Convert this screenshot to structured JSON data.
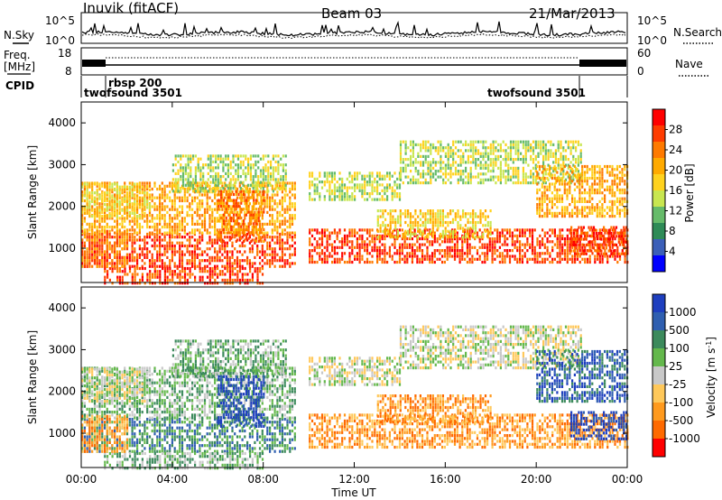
{
  "header": {
    "station": "Inuvik (fitACF)",
    "beam": "Beam 03",
    "date": "21/Mar/2013"
  },
  "labels": {
    "nsky": "N.Sky",
    "nsearch": "N.Search",
    "freq_line1": "Freq.",
    "freq_line2": "[MHz]",
    "nave": "Nave",
    "cpid": "CPID"
  },
  "chart_data": [
    {
      "type": "line",
      "name": "noise-panel",
      "yticks_left": [
        "10^5",
        "10^0"
      ],
      "yticks_right": [
        "10^5",
        "10^0"
      ],
      "series": [
        {
          "name": "N.Sky",
          "style": "solid"
        },
        {
          "name": "N.Search",
          "style": "dotted"
        }
      ]
    },
    {
      "type": "line",
      "name": "freq-nave-panel",
      "yticks_left": [
        "18",
        "8"
      ],
      "yticks_right": [
        "60",
        "0"
      ],
      "series": [
        {
          "name": "Freq.",
          "style": "solid"
        },
        {
          "name": "Nave",
          "style": "dotted"
        }
      ]
    },
    {
      "type": "table",
      "name": "cpid-panel",
      "segments": [
        {
          "label": "twofsound 3501",
          "start": "00:00",
          "end": "01:00"
        },
        {
          "label": "rbsp 200",
          "start": "01:00",
          "end": "21:50"
        },
        {
          "label": "twofsound 3501",
          "start": "21:50",
          "end": "24:00"
        }
      ]
    },
    {
      "type": "heatmap",
      "name": "power-panel",
      "ylabel": "Slant Range [km]",
      "yticks": [
        "1000",
        "2000",
        "3000",
        "4000"
      ],
      "ylim": [
        180,
        4500
      ],
      "colorbar": {
        "label": "Power [dB]",
        "ticks": [
          "4",
          "8",
          "12",
          "16",
          "20",
          "24",
          "28"
        ],
        "colors": [
          "#0000ff",
          "#3b5fb8",
          "#2e8b57",
          "#66bb6a",
          "#c8e650",
          "#ffd21e",
          "#ffaa00",
          "#ff7a00",
          "#ff3c00",
          "#ff0000"
        ]
      }
    },
    {
      "type": "heatmap",
      "name": "velocity-panel",
      "ylabel": "Slant Range [km]",
      "yticks": [
        "1000",
        "2000",
        "3000",
        "4000"
      ],
      "ylim": [
        180,
        4500
      ],
      "xlabel": "Time UT",
      "xticks": [
        "00:00",
        "04:00",
        "08:00",
        "12:00",
        "16:00",
        "20:00",
        "00:00"
      ],
      "colorbar": {
        "label": "Velocity [m s^-1]",
        "ticks": [
          "1000",
          "500",
          "100",
          "25",
          "-25",
          "-100",
          "-500",
          "-1000"
        ],
        "colors": [
          "#1e3fbf",
          "#2f5fb0",
          "#3c8a5c",
          "#64b84c",
          "#c8c8c8",
          "#ffc85a",
          "#ff9a1e",
          "#ff6a00",
          "#ff0000"
        ]
      }
    }
  ]
}
